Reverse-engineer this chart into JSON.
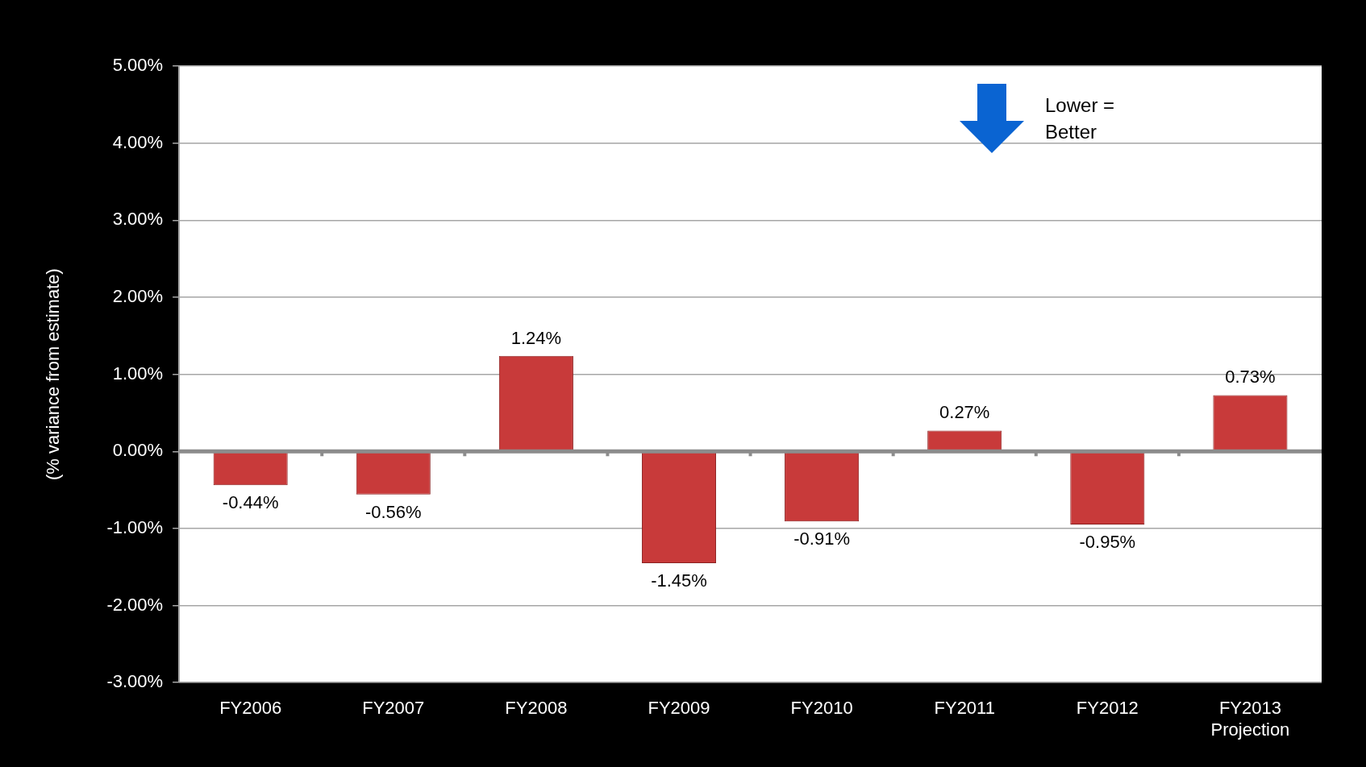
{
  "chart_data": {
    "type": "bar",
    "ylabel": "(% variance from estimate)",
    "categories": [
      "FY2006",
      "FY2007",
      "FY2008",
      "FY2009",
      "FY2010",
      "FY2011",
      "FY2012",
      "FY2013\nProjection"
    ],
    "values": [
      -0.44,
      -0.56,
      1.24,
      -1.45,
      -0.91,
      0.27,
      -0.95,
      0.73
    ],
    "value_labels": [
      "-0.44%",
      "-0.56%",
      "1.24%",
      "-1.45%",
      "-0.91%",
      "0.27%",
      "-0.95%",
      "0.73%"
    ],
    "color": "#c83a3a",
    "ylim": [
      -3,
      5
    ],
    "yticks": [
      {
        "value": -3,
        "label": "-3.00%"
      },
      {
        "value": -2,
        "label": "-2.00%"
      },
      {
        "value": -1,
        "label": "-1.00%"
      },
      {
        "value": 0,
        "label": "0.00%"
      },
      {
        "value": 1,
        "label": "1.00%"
      },
      {
        "value": 2,
        "label": "2.00%"
      },
      {
        "value": 3,
        "label": "3.00%"
      },
      {
        "value": 4,
        "label": "4.00%"
      },
      {
        "value": 5,
        "label": "5.00%"
      }
    ],
    "grid": "y",
    "legend": false,
    "annotations": [
      "Lower =\nBetter"
    ]
  }
}
